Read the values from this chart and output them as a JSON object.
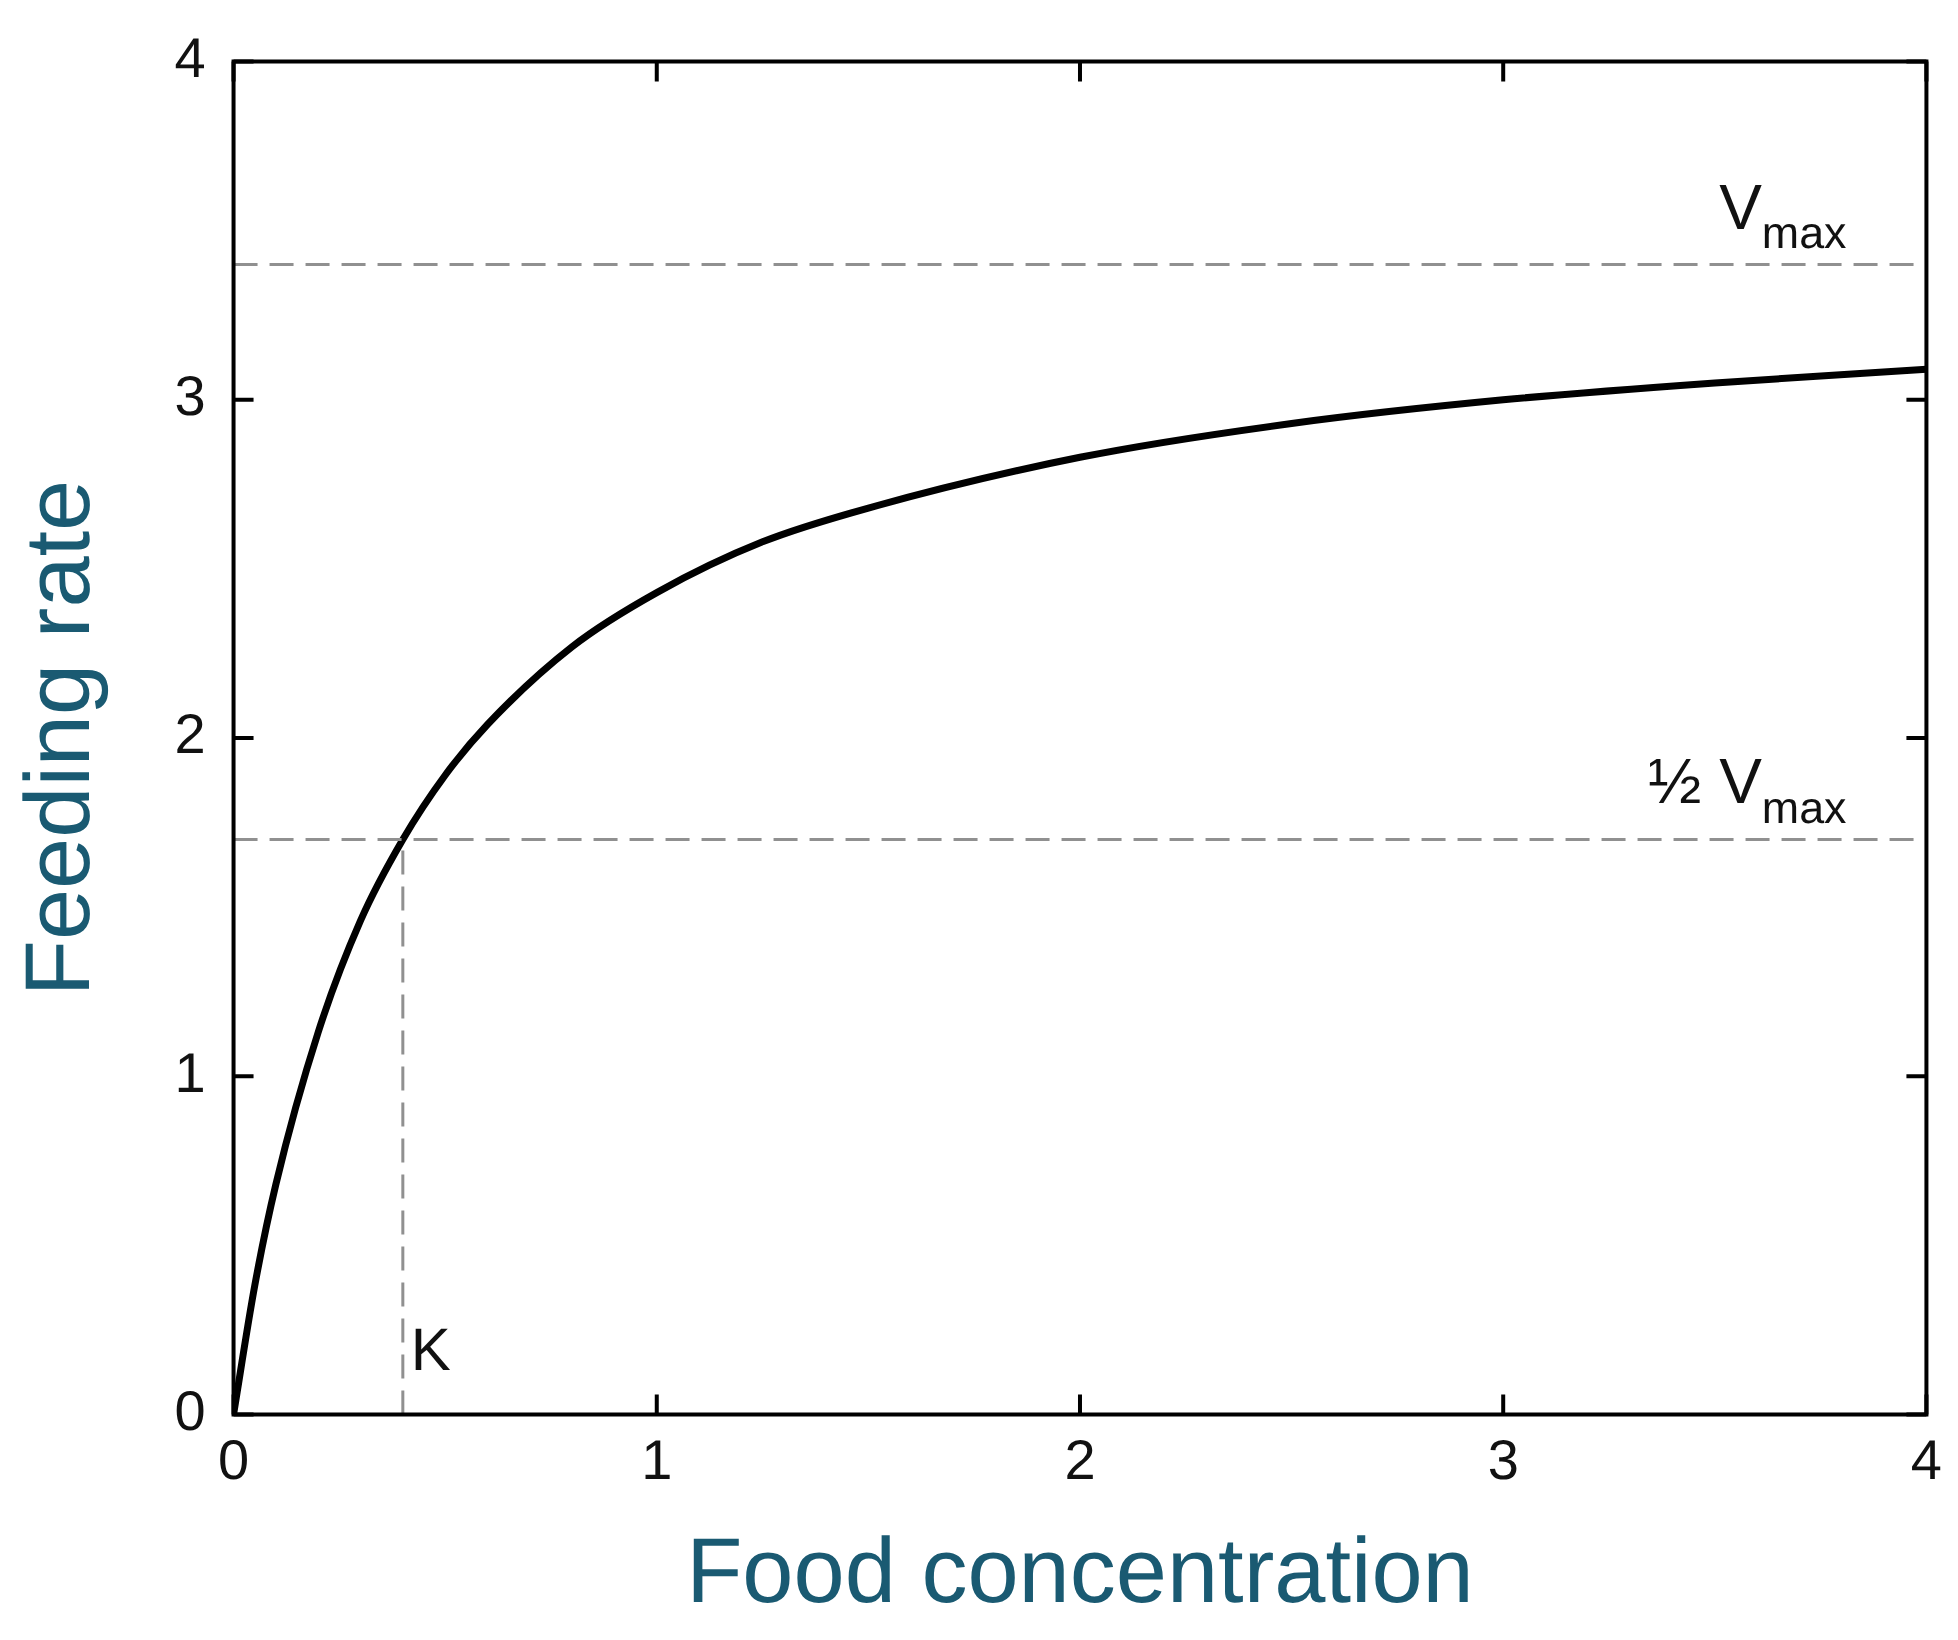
{
  "chart_data": {
    "type": "line",
    "xlabel": "Food concentration",
    "ylabel": "Feeding rate",
    "series": [
      {
        "color": "#000000",
        "x": [
          0,
          0.05,
          0.1,
          0.2,
          0.3,
          0.4,
          0.5,
          0.6,
          0.8,
          1,
          1.25,
          1.5,
          2,
          2.5,
          3,
          3.5,
          4
        ],
        "values": [
          0,
          0.38,
          0.68,
          1.13,
          1.46,
          1.7,
          1.89,
          2.04,
          2.27,
          2.43,
          2.58,
          2.68,
          2.83,
          2.93,
          3.0,
          3.05,
          3.09
        ]
      }
    ],
    "xlim": [
      0,
      4
    ],
    "xticks": [
      0,
      1,
      2,
      3,
      4
    ],
    "ylim": [
      0,
      4
    ],
    "yticks": [
      0,
      1,
      2,
      3,
      4
    ],
    "ref_lines": [
      {
        "axis": "y",
        "value": 3.4,
        "label": "V$_{max}$",
        "color": "#909090",
        "line_style": "dashed"
      },
      {
        "axis": "y",
        "value": 1.7,
        "label": "½ V$_{max}$",
        "color": "#909090",
        "line_style": "dashed"
      },
      {
        "axis": "x",
        "value": 0.4,
        "label": "K",
        "color": "#909090",
        "line_style": "dashed"
      }
    ],
    "grid": false,
    "legend": false,
    "marker": "none",
    "line_style": "solid"
  }
}
